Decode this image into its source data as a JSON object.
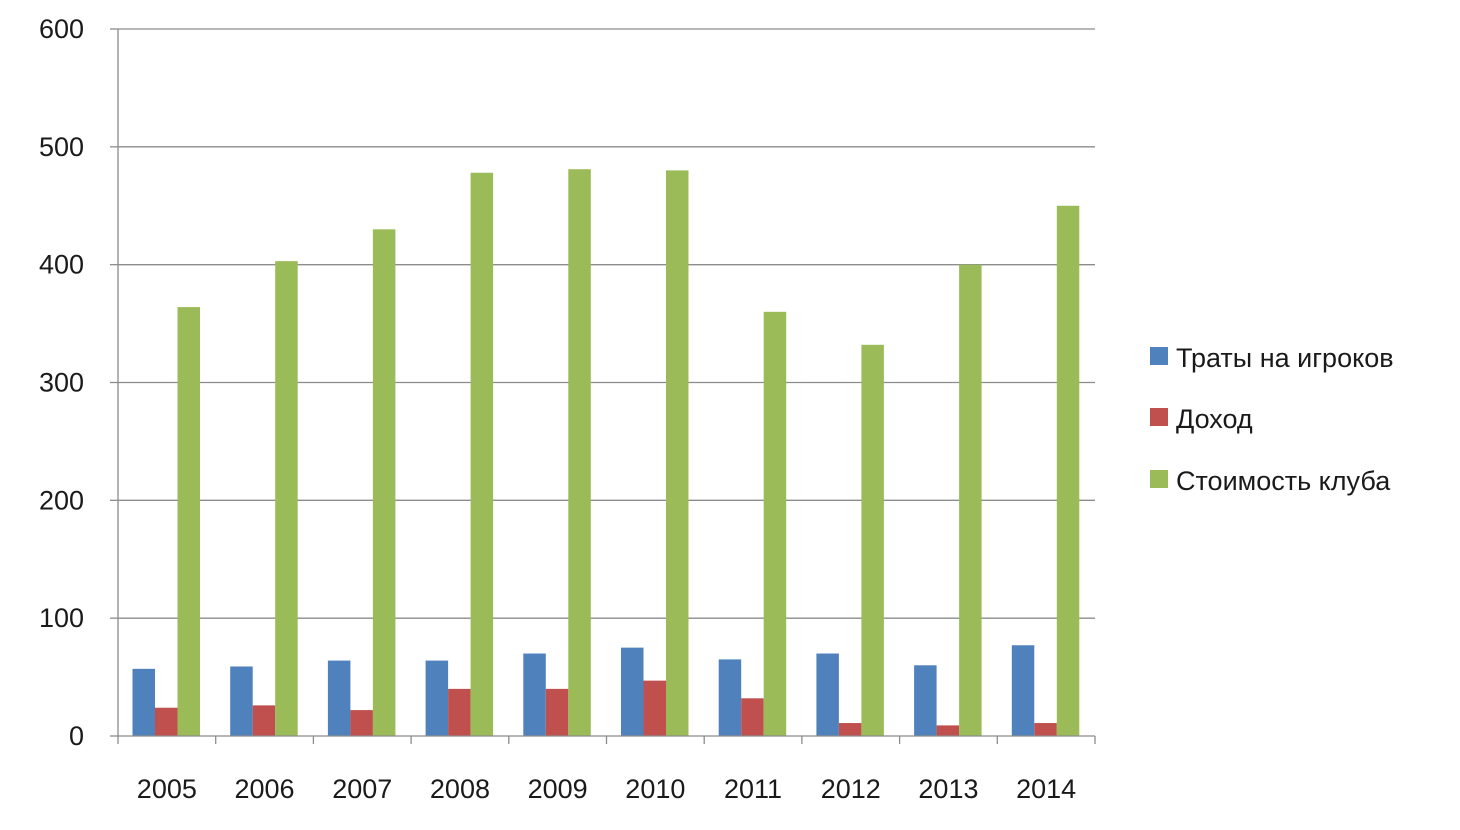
{
  "chart_data": {
    "type": "bar",
    "categories": [
      "2005",
      "2006",
      "2007",
      "2008",
      "2009",
      "2010",
      "2011",
      "2012",
      "2013",
      "2014"
    ],
    "series": [
      {
        "name": "Траты на игроков",
        "color": "#4F81BD",
        "values": [
          57,
          59,
          64,
          64,
          70,
          75,
          65,
          70,
          60,
          77
        ]
      },
      {
        "name": "Доход",
        "color": "#C0504D",
        "values": [
          24,
          26,
          22,
          40,
          40,
          47,
          32,
          11,
          9,
          11
        ]
      },
      {
        "name": "Стоимость клуба",
        "color": "#9BBB59",
        "values": [
          364,
          403,
          430,
          478,
          481,
          480,
          360,
          332,
          400,
          450
        ]
      }
    ],
    "yticks": [
      "0",
      "100",
      "200",
      "300",
      "400",
      "500",
      "600"
    ],
    "ylim": [
      0,
      600
    ],
    "grid": true,
    "legend_position": "right"
  }
}
